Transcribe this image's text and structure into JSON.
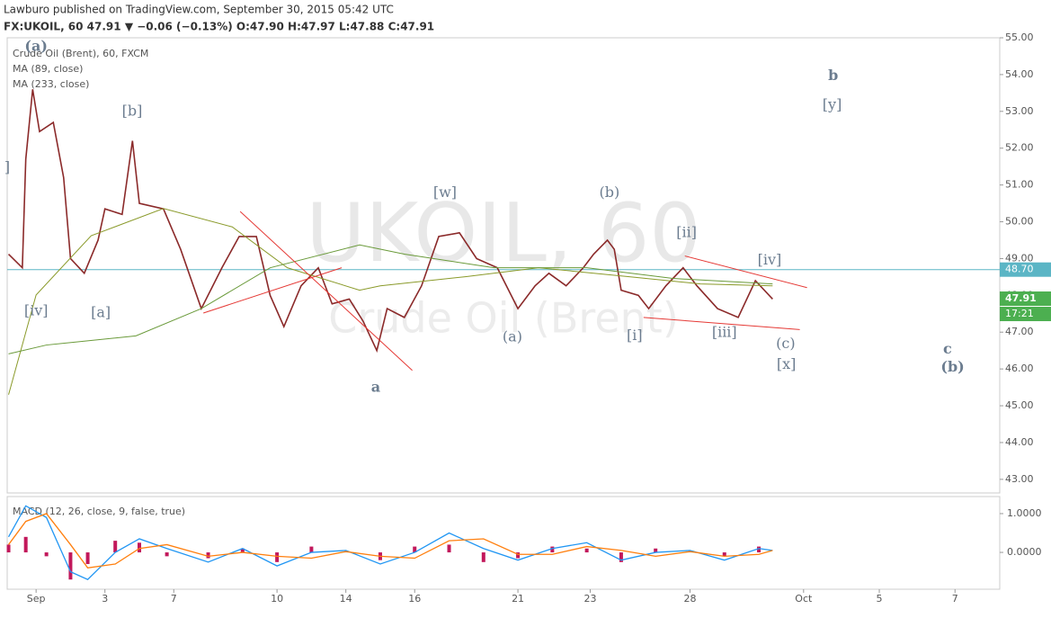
{
  "chart_data": {
    "type": "line",
    "header": "Lawburo published on TradingView.com, September 30, 2015 05:42 UTC",
    "quote": "FX:UKOIL, 60 47.91 ▼ −0.06 (−0.13%) O:47.90 H:47.97 L:47.88 C:47.91",
    "watermark": "UKOIL, 60",
    "watermark_sub": "Crude Oil (Brent)",
    "legend": [
      "Crude Oil (Brent), 60, FXCM",
      "MA (89, close)",
      "MA (233, close)"
    ],
    "macd_title": "MACD (12, 26, close, 9, false, true)",
    "xlim": [
      -0.84,
      28.0
    ],
    "xticks": [
      {
        "value": 0,
        "label": "Sep"
      },
      {
        "value": 2,
        "label": "3"
      },
      {
        "value": 4,
        "label": "7"
      },
      {
        "value": 7,
        "label": "10"
      },
      {
        "value": 9,
        "label": "14"
      },
      {
        "value": 11,
        "label": "16"
      },
      {
        "value": 14,
        "label": "21"
      },
      {
        "value": 16.1,
        "label": "23"
      },
      {
        "value": 19,
        "label": "28"
      },
      {
        "value": 22.3,
        "label": "Oct"
      },
      {
        "value": 24.5,
        "label": "5"
      },
      {
        "value": 26.7,
        "label": "7"
      }
    ],
    "ylim": [
      42.63,
      55.0
    ],
    "yticks": [
      {
        "value": 43,
        "label": "43.00"
      },
      {
        "value": 44,
        "label": "44.00"
      },
      {
        "value": 45,
        "label": "45.00"
      },
      {
        "value": 46,
        "label": "46.00"
      },
      {
        "value": 47,
        "label": "47.00"
      },
      {
        "value": 48,
        "label": "48.00"
      },
      {
        "value": 49,
        "label": "49.00"
      },
      {
        "value": 50,
        "label": "50.00"
      },
      {
        "value": 51,
        "label": "51.00"
      },
      {
        "value": 52,
        "label": "52.00"
      },
      {
        "value": 53,
        "label": "53.00"
      },
      {
        "value": 54,
        "label": "54.00"
      },
      {
        "value": 55,
        "label": "55.00"
      }
    ],
    "hline": {
      "value": 48.7,
      "label": "48.70",
      "color": "#5bb5c5"
    },
    "last_price": {
      "value": 47.91,
      "label": "47.91",
      "countdown": "17:21",
      "color": "#4caf50"
    },
    "series": [
      {
        "name": "Crude Oil (Brent), 60, FXCM",
        "color": "#8b2a2a",
        "x": [
          -0.8,
          -0.4,
          -0.3,
          -0.1,
          0.1,
          0.5,
          0.8,
          1.0,
          1.4,
          1.8,
          2.0,
          2.5,
          2.8,
          3.0,
          3.7,
          4.2,
          4.8,
          5.4,
          5.9,
          6.4,
          6.8,
          7.2,
          7.7,
          8.2,
          8.6,
          9.1,
          9.5,
          9.9,
          10.2,
          10.7,
          11.2,
          11.7,
          12.3,
          12.8,
          13.4,
          14.0,
          14.5,
          14.9,
          15.4,
          15.9,
          16.2,
          16.6,
          16.8,
          17.0,
          17.5,
          17.8,
          18.3,
          18.8,
          19.2,
          19.8,
          20.4,
          20.9,
          21.4
        ],
        "values": [
          49.12,
          48.75,
          51.7,
          53.6,
          52.45,
          52.7,
          51.2,
          49.0,
          48.6,
          49.5,
          50.35,
          50.2,
          52.2,
          50.5,
          50.35,
          49.25,
          47.64,
          48.75,
          49.6,
          49.6,
          48.0,
          47.15,
          48.26,
          48.75,
          47.77,
          47.9,
          47.3,
          46.5,
          47.64,
          47.4,
          48.26,
          49.6,
          49.7,
          49.0,
          48.75,
          47.64,
          48.26,
          48.6,
          48.26,
          48.75,
          49.12,
          49.5,
          49.25,
          48.14,
          48.0,
          47.64,
          48.26,
          48.75,
          48.26,
          47.64,
          47.4,
          48.4,
          47.9
        ]
      },
      {
        "name": "MA (89, close)",
        "color": "#8a9a2a",
        "x": [
          -0.8,
          0.0,
          1.6,
          3.7,
          5.7,
          7.3,
          9.4,
          10.0,
          12.5,
          14.6,
          17.2,
          19.3,
          21.4
        ],
        "values": [
          45.3,
          48.01,
          49.62,
          50.36,
          49.86,
          48.75,
          48.14,
          48.26,
          48.51,
          48.75,
          48.51,
          48.31,
          48.26
        ]
      },
      {
        "name": "MA (233, close)",
        "color": "#6a9a3a",
        "x": [
          -0.8,
          0.3,
          2.9,
          4.8,
          6.8,
          9.4,
          10.7,
          13.3,
          16.0,
          18.5,
          21.4
        ],
        "values": [
          46.41,
          46.65,
          46.9,
          47.64,
          48.75,
          49.37,
          49.12,
          48.75,
          48.75,
          48.46,
          48.31
        ]
      }
    ],
    "trendlines": [
      {
        "x": [
          5.93,
          10.93
        ],
        "y": [
          50.28,
          45.96
        ]
      },
      {
        "x": [
          4.86,
          8.88
        ],
        "y": [
          47.52,
          48.75
        ]
      },
      {
        "x": [
          18.85,
          22.4
        ],
        "y": [
          49.07,
          48.21
        ]
      },
      {
        "x": [
          17.65,
          22.19
        ],
        "y": [
          47.4,
          47.07
        ]
      }
    ],
    "trendline_color": "#e53935",
    "annotations": [
      {
        "text": "(a)",
        "x": 0,
        "y": 54.75,
        "bold": true
      },
      {
        "text": "]",
        "x": -0.84,
        "y": 51.47
      },
      {
        "text": "[b]",
        "x": 2.79,
        "y": 53.0
      },
      {
        "text": "[iv]",
        "x": 0,
        "y": 47.57
      },
      {
        "text": "[a]",
        "x": 1.88,
        "y": 47.52
      },
      {
        "text": "a",
        "x": 9.87,
        "y": 45.49,
        "bold": true
      },
      {
        "text": "[w]",
        "x": 11.88,
        "y": 50.78
      },
      {
        "text": "(b)",
        "x": 16.66,
        "y": 50.78
      },
      {
        "text": "(a)",
        "x": 13.84,
        "y": 46.86
      },
      {
        "text": "[ii]",
        "x": 18.9,
        "y": 49.69
      },
      {
        "text": "[i]",
        "x": 17.39,
        "y": 46.9
      },
      {
        "text": "[iii]",
        "x": 20.0,
        "y": 46.98
      },
      {
        "text": "[iv]",
        "x": 21.31,
        "y": 48.95
      },
      {
        "text": "(c)",
        "x": 21.78,
        "y": 46.68
      },
      {
        "text": "[x]",
        "x": 21.8,
        "y": 46.11
      },
      {
        "text": "b",
        "x": 23.16,
        "y": 53.96,
        "bold": true
      },
      {
        "text": "[y]",
        "x": 23.13,
        "y": 53.17
      },
      {
        "text": "c",
        "x": 26.48,
        "y": 46.53,
        "bold": true
      },
      {
        "text": "(b)",
        "x": 26.63,
        "y": 46.04,
        "bold": true
      }
    ],
    "macd": {
      "ylim": [
        -0.95,
        1.44
      ],
      "yticks": [
        {
          "value": 1,
          "label": "1.0000"
        },
        {
          "value": 0,
          "label": "0.0000"
        }
      ],
      "x": [
        -0.8,
        -0.3,
        0.3,
        1.0,
        1.5,
        2.3,
        3.0,
        3.8,
        5.0,
        6.0,
        7.0,
        8.0,
        9.0,
        10.0,
        11.0,
        12.0,
        13.0,
        14.0,
        15.0,
        16.0,
        17.0,
        18.0,
        19.0,
        20.0,
        21.0,
        21.4
      ],
      "series": [
        {
          "name": "MACD",
          "color": "#2196f3",
          "values": [
            0.4,
            1.2,
            0.9,
            -0.5,
            -0.7,
            0.0,
            0.35,
            0.1,
            -0.25,
            0.1,
            -0.35,
            0.0,
            0.05,
            -0.3,
            0.0,
            0.5,
            0.1,
            -0.2,
            0.1,
            0.25,
            -0.2,
            0.0,
            0.05,
            -0.2,
            0.1,
            0.05
          ]
        },
        {
          "name": "Signal",
          "color": "#ff7f0e",
          "values": [
            0.2,
            0.8,
            1.0,
            0.2,
            -0.4,
            -0.3,
            0.1,
            0.2,
            -0.1,
            0.0,
            -0.1,
            -0.15,
            0.02,
            -0.1,
            -0.15,
            0.3,
            0.35,
            -0.05,
            -0.05,
            0.15,
            0.05,
            -0.1,
            0.02,
            -0.1,
            -0.05,
            0.05
          ]
        }
      ],
      "histogram": {
        "color": "#c2185b",
        "values": [
          0.2,
          0.4,
          -0.1,
          -0.7,
          -0.3,
          0.3,
          0.25,
          -0.1,
          -0.15,
          0.1,
          -0.25,
          0.15,
          0.03,
          -0.2,
          0.15,
          0.2,
          -0.25,
          -0.15,
          0.15,
          0.1,
          -0.25,
          0.1,
          0.03,
          -0.1,
          0.15,
          0
        ]
      }
    }
  }
}
